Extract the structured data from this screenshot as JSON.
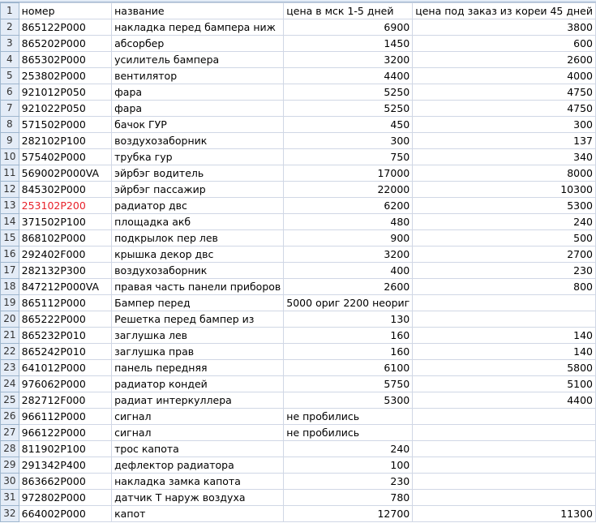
{
  "sheet": {
    "columns": [
      "номер",
      "название",
      "цена в мск 1-5 дней",
      "цена под заказ из кореи 45 дней"
    ],
    "header_row": 1,
    "accent_colors": {
      "highlight_text": "#e8212a",
      "header_bg": "#e4ecf7",
      "grid": "#d0d7e5"
    },
    "rows": [
      {
        "n": 2,
        "a": "865122P000",
        "b": "накладка перед бампера ниж",
        "c": "6900",
        "d": "3800"
      },
      {
        "n": 3,
        "a": "865202P000",
        "b": "абсорбер",
        "c": "1450",
        "d": "600"
      },
      {
        "n": 4,
        "a": "865302P000",
        "b": "усилитель бампера",
        "c": "3200",
        "d": "2600"
      },
      {
        "n": 5,
        "a": "253802P000",
        "b": "вентилятор",
        "c": "4400",
        "d": "4000"
      },
      {
        "n": 6,
        "a": "921012P050",
        "b": "фара",
        "c": "5250",
        "d": "4750"
      },
      {
        "n": 7,
        "a": "921022P050",
        "b": "фара",
        "c": "5250",
        "d": "4750"
      },
      {
        "n": 8,
        "a": "571502P000",
        "b": "бачок ГУР",
        "c": "450",
        "d": "300"
      },
      {
        "n": 9,
        "a": "282102P100",
        "b": "воздухозаборник",
        "c": "300",
        "d": "137"
      },
      {
        "n": 10,
        "a": "575402P000",
        "b": "трубка гур",
        "c": "750",
        "d": "340"
      },
      {
        "n": 11,
        "a": "569002P000VA",
        "b": "эйрбэг водитель",
        "c": "17000",
        "d": "8000"
      },
      {
        "n": 12,
        "a": "845302P000",
        "b": "эйрбэг пассажир",
        "c": "22000",
        "d": "10300"
      },
      {
        "n": 13,
        "a": "253102P200",
        "b": "радиатор двс",
        "c": "6200",
        "d": "5300",
        "red": true
      },
      {
        "n": 14,
        "a": "371502P100",
        "b": "площадка акб",
        "c": "480",
        "d": "240"
      },
      {
        "n": 15,
        "a": "868102P000",
        "b": "подкрылок пер лев",
        "c": "900",
        "d": "500"
      },
      {
        "n": 16,
        "a": "292402F000",
        "b": "крышка декор двс",
        "c": "3200",
        "d": "2700"
      },
      {
        "n": 17,
        "a": "282132P300",
        "b": "воздухозаборник",
        "c": "400",
        "d": "230"
      },
      {
        "n": 18,
        "a": "847212P000VA",
        "b": "правая часть панели приборов",
        "c": "2600",
        "d": "800"
      },
      {
        "n": 19,
        "a": "865112P000",
        "b": "Бампер перед",
        "c": "5000 ориг 2200 неориг",
        "d": "",
        "ctext": true
      },
      {
        "n": 20,
        "a": "865222P000",
        "b": "Решетка перед бампер из",
        "c": "130",
        "d": ""
      },
      {
        "n": 21,
        "a": "865232P010",
        "b": "заглушка лев",
        "c": "160",
        "d": "140"
      },
      {
        "n": 22,
        "a": "865242P010",
        "b": "заглушка прав",
        "c": "160",
        "d": "140"
      },
      {
        "n": 23,
        "a": "641012P000",
        "b": "панель передняя",
        "c": "6100",
        "d": "5800"
      },
      {
        "n": 24,
        "a": "976062P000",
        "b": "радиатор кондей",
        "c": "5750",
        "d": "5100"
      },
      {
        "n": 25,
        "a": "282712F000",
        "b": "радиат интеркуллера",
        "c": "5300",
        "d": "4400"
      },
      {
        "n": 26,
        "a": "966112P000",
        "b": "сигнал",
        "c": "не пробились",
        "d": "",
        "ctext": true
      },
      {
        "n": 27,
        "a": "966122P000",
        "b": "сигнал",
        "c": "не пробились",
        "d": "",
        "ctext": true
      },
      {
        "n": 28,
        "a": "811902P100",
        "b": "трос капота",
        "c": "240",
        "d": ""
      },
      {
        "n": 29,
        "a": "291342P400",
        "b": "дефлектор радиатора",
        "c": "100",
        "d": ""
      },
      {
        "n": 30,
        "a": "863662P000",
        "b": "накладка замка капота",
        "c": "230",
        "d": ""
      },
      {
        "n": 31,
        "a": "972802P000",
        "b": "датчик  Т наруж воздуха",
        "c": "780",
        "d": ""
      },
      {
        "n": 32,
        "a": "664002P000",
        "b": "капот",
        "c": "12700",
        "d": "11300"
      }
    ]
  }
}
